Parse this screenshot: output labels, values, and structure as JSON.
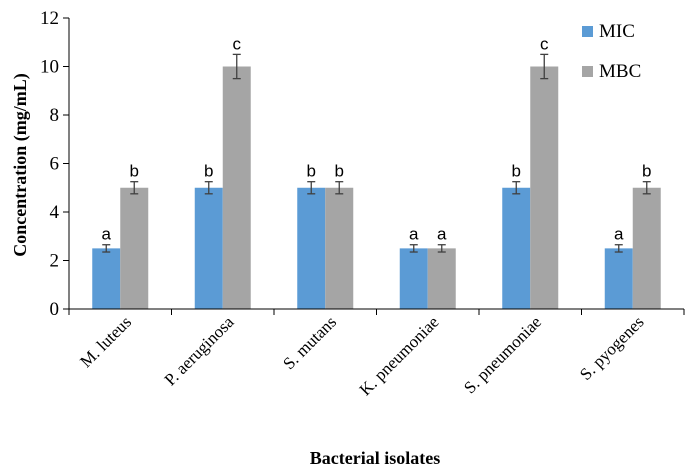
{
  "chart_data": {
    "type": "bar",
    "title": "",
    "xlabel": "Bacterial isolates",
    "ylabel": "Concentration (mg/mL)",
    "ylim": [
      0,
      12
    ],
    "yticks": [
      0,
      2,
      4,
      6,
      8,
      10,
      12
    ],
    "categories": [
      "M. luteus",
      "P. aeruginosa",
      "S. mutans",
      "K. pneumoniae",
      "S. pneumoniae",
      "S. pyogenes"
    ],
    "series": [
      {
        "name": "MIC",
        "color": "#5b9bd5",
        "values": [
          2.5,
          5,
          5,
          2.5,
          5,
          2.5
        ],
        "errors": [
          0.15,
          0.25,
          0.25,
          0.15,
          0.25,
          0.15
        ],
        "labels": [
          "a",
          "b",
          "b",
          "a",
          "b",
          "a"
        ]
      },
      {
        "name": "MBC",
        "color": "#a5a5a5",
        "values": [
          5,
          10,
          5,
          2.5,
          10,
          5
        ],
        "errors": [
          0.25,
          0.5,
          0.25,
          0.15,
          0.5,
          0.25
        ],
        "labels": [
          "b",
          "c",
          "b",
          "a",
          "c",
          "b"
        ]
      }
    ],
    "legend": {
      "position": "top-right"
    },
    "grid": false,
    "error_bar_color": "#404040"
  }
}
